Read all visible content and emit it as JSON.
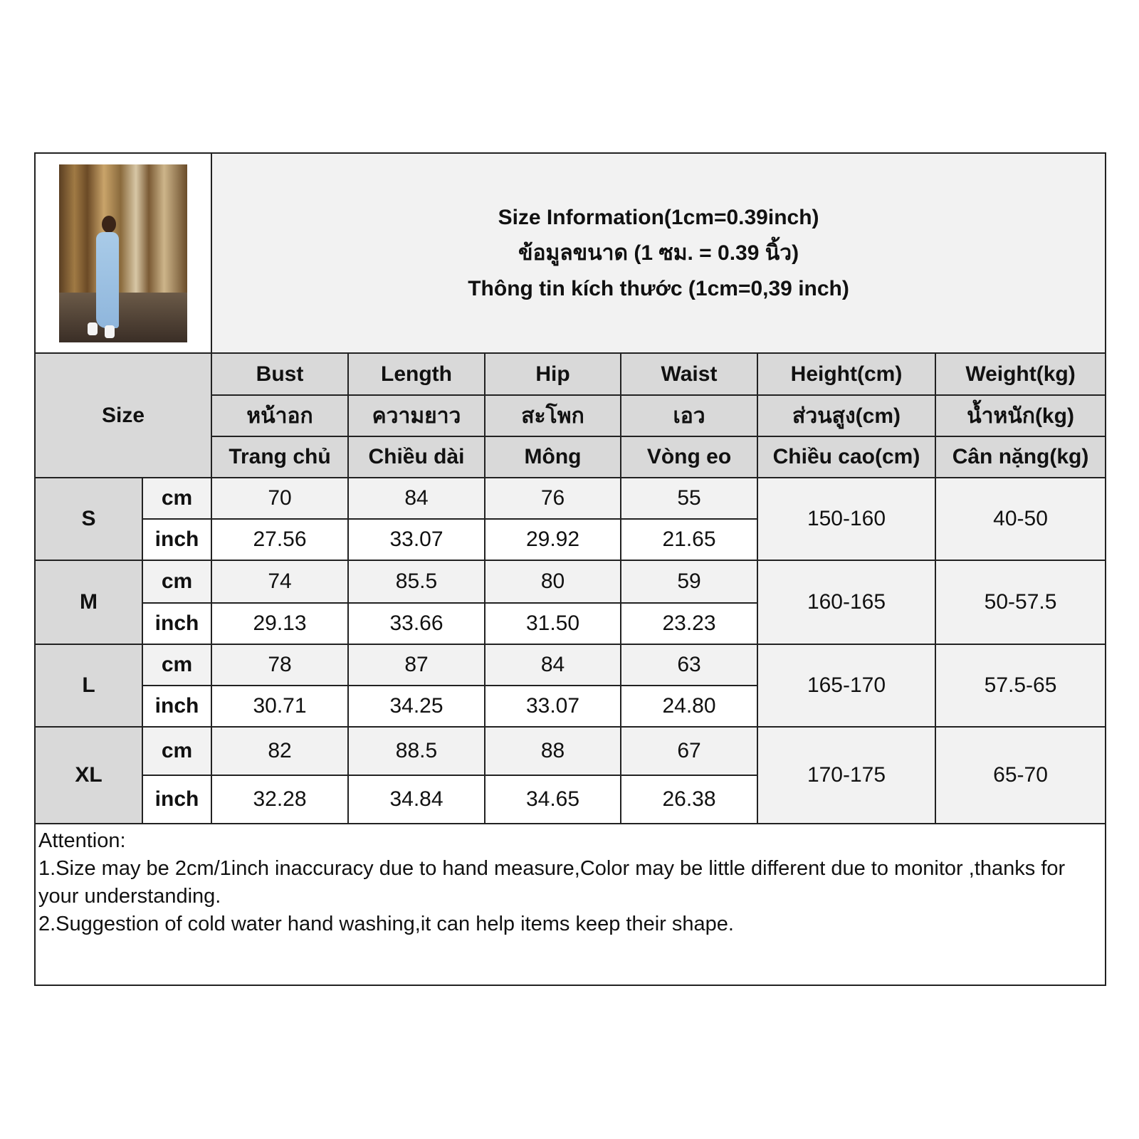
{
  "title": {
    "line1": "Size Information(1cm=0.39inch)",
    "line2": "ข้อมูลขนาด (1 ซม. = 0.39 นิ้ว)",
    "line3": "Thông tin kích thước (1cm=0,39 inch)"
  },
  "size_label": "Size",
  "columns": [
    {
      "en": "Bust",
      "th": "หน้าอก",
      "vi": "Trang chủ"
    },
    {
      "en": "Length",
      "th": "ความยาว",
      "vi": "Chiều dài"
    },
    {
      "en": "Hip",
      "th": "สะโพก",
      "vi": "Mông"
    },
    {
      "en": "Waist",
      "th": "เอว",
      "vi": "Vòng eo"
    },
    {
      "en": "Height(cm)",
      "th": "ส่วนสูง(cm)",
      "vi": "Chiều cao(cm)"
    },
    {
      "en": "Weight(kg)",
      "th": "น้ำหนัก(kg)",
      "vi": "Cân nặng(kg)"
    }
  ],
  "units": {
    "cm": "cm",
    "inch": "inch"
  },
  "sizes": [
    {
      "name": "S",
      "cm": [
        "70",
        "84",
        "76",
        "55"
      ],
      "inch": [
        "27.56",
        "33.07",
        "29.92",
        "21.65"
      ],
      "height": "150-160",
      "weight": "40-50"
    },
    {
      "name": "M",
      "cm": [
        "74",
        "85.5",
        "80",
        "59"
      ],
      "inch": [
        "29.13",
        "33.66",
        "31.50",
        "23.23"
      ],
      "height": "160-165",
      "weight": "50-57.5"
    },
    {
      "name": "L",
      "cm": [
        "78",
        "87",
        "84",
        "63"
      ],
      "inch": [
        "30.71",
        "34.25",
        "33.07",
        "24.80"
      ],
      "height": "165-170",
      "weight": "57.5-65"
    },
    {
      "name": "XL",
      "cm": [
        "82",
        "88.5",
        "88",
        "67"
      ],
      "inch": [
        "32.28",
        "34.84",
        "34.65",
        "26.38"
      ],
      "height": "170-175",
      "weight": "65-70"
    }
  ],
  "attention": {
    "heading": "Attention:",
    "note1": "1.Size may be 2cm/1inch inaccuracy due to hand measure,Color may be little different due to monitor ,thanks for your understanding.",
    "note2": "2.Suggestion of cold water hand washing,it can help items keep their shape."
  },
  "colors": {
    "header_bg": "#d9d9d9",
    "light_bg": "#f2f2f2",
    "border": "#222222"
  }
}
